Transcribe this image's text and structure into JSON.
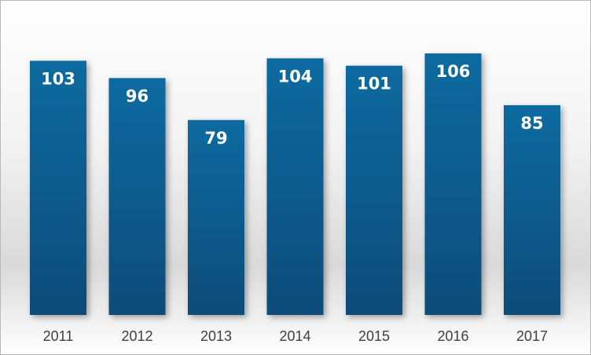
{
  "chart_data": {
    "type": "bar",
    "categories": [
      "2011",
      "2012",
      "2013",
      "2014",
      "2015",
      "2016",
      "2017"
    ],
    "values": [
      103,
      96,
      79,
      104,
      101,
      106,
      85
    ],
    "data_labels": [
      "103",
      "96",
      "79",
      "104",
      "101",
      "106",
      "85"
    ],
    "ylim": [
      0,
      106
    ],
    "grid": false,
    "legend": "none",
    "colors": {
      "bar_top": "#0a6aa0",
      "bar_bottom": "#0f4c7a",
      "label": "#ffffff",
      "tick": "#404040"
    }
  }
}
